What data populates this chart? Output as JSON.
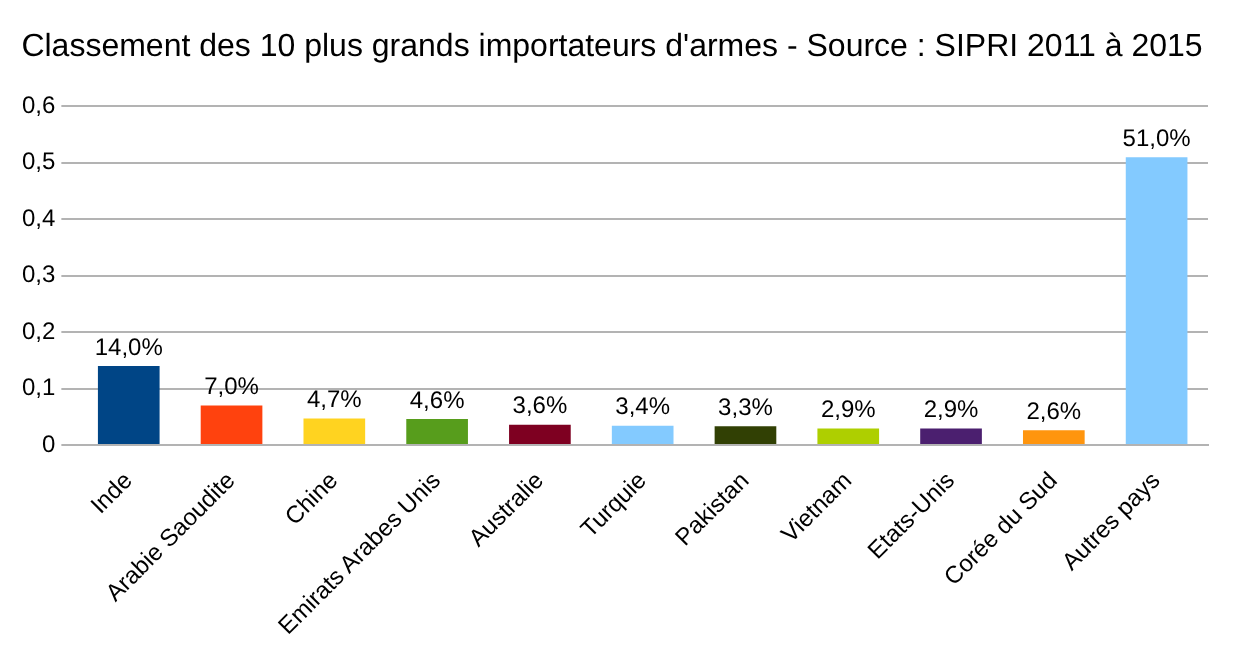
{
  "chart_data": {
    "type": "bar",
    "title": "Classement des 10 plus grands importateurs d'armes - Source : SIPRI 2011 à 2015",
    "categories": [
      "Inde",
      "Arabie Saoudite",
      "Chine",
      "Emirats Arabes Unis",
      "Australie",
      "Turquie",
      "Pakistan",
      "Vietnam",
      "Etats-Unis",
      "Corée du Sud",
      "Autres pays"
    ],
    "values": [
      0.14,
      0.07,
      0.047,
      0.046,
      0.036,
      0.034,
      0.033,
      0.029,
      0.029,
      0.026,
      0.51
    ],
    "colors": [
      "#004586",
      "#ff420e",
      "#ffd320",
      "#579d1c",
      "#7e0021",
      "#83caff",
      "#314004",
      "#aecf00",
      "#4b1f6f",
      "#ff950e",
      "#83caff"
    ],
    "value_labels": [
      "14,0%",
      "7,0%",
      "4,7%",
      "4,6%",
      "3,6%",
      "3,4%",
      "3,3%",
      "2,9%",
      "2,9%",
      "2,6%",
      "51,0%"
    ],
    "ylim": [
      0,
      0.6
    ],
    "yticks": [
      0,
      {
        "value": 0.1,
        "label": "0,1"
      },
      {
        "value": 0.2,
        "label": "0,2"
      },
      {
        "value": 0.3,
        "label": "0,3"
      },
      {
        "value": 0.4,
        "label": "0,4"
      },
      {
        "value": 0.5,
        "label": "0,5"
      },
      {
        "value": 0.6,
        "label": "0,6"
      }
    ],
    "grid": "y",
    "legend": false
  }
}
